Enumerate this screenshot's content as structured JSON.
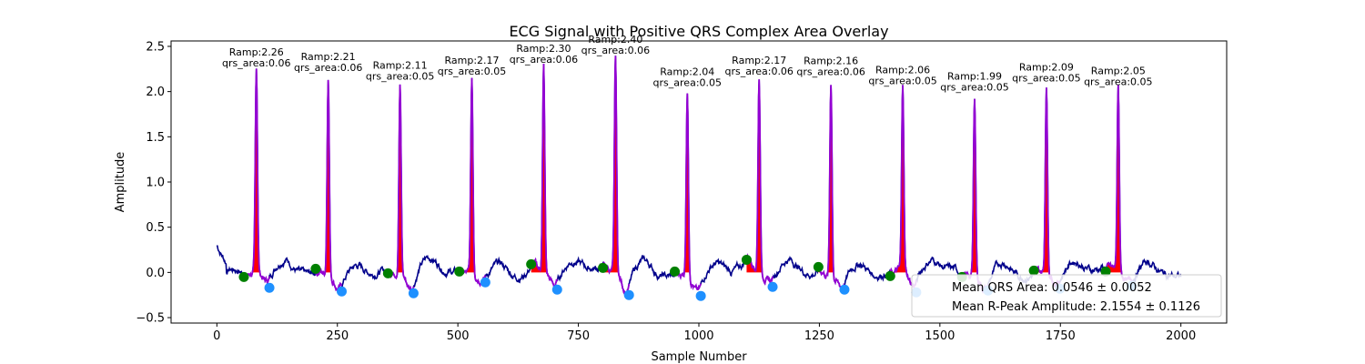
{
  "chart_data": {
    "type": "line",
    "title": "ECG Signal with Positive QRS Complex Area Overlay",
    "xlabel": "Sample Number",
    "ylabel": "Amplitude",
    "xlim": [
      -95,
      2095
    ],
    "ylim": [
      -0.56,
      2.56
    ],
    "xticks": [
      0,
      250,
      500,
      750,
      1000,
      1250,
      1500,
      1750,
      2000
    ],
    "yticks": [
      -0.5,
      0.0,
      0.5,
      1.0,
      1.5,
      2.0,
      2.5
    ],
    "ytick_labels": [
      "−0.5",
      "0.0",
      "0.5",
      "1.0",
      "1.5",
      "2.0",
      "2.5"
    ],
    "grid": false,
    "legend_position": "lower-right",
    "colors": {
      "signal": "#00008b",
      "qrs_segment": "#9400d3",
      "qrs_fill": "#ff0000",
      "q_marker": "#008000",
      "s_marker": "#1e90ff"
    },
    "beats": [
      {
        "r_x": 82,
        "r_amp": 2.26,
        "ramp_label": "Ramp:2.26",
        "area_label": "qrs_area:0.06",
        "q_x": 56,
        "q_y": -0.05,
        "s_x": 109,
        "s_y": -0.17
      },
      {
        "r_x": 231,
        "r_amp": 2.21,
        "ramp_label": "Ramp:2.21",
        "area_label": "qrs_area:0.06",
        "q_x": 205,
        "q_y": 0.04,
        "s_x": 259,
        "s_y": -0.21
      },
      {
        "r_x": 380,
        "r_amp": 2.11,
        "ramp_label": "Ramp:2.11",
        "area_label": "qrs_area:0.05",
        "q_x": 355,
        "q_y": -0.01,
        "s_x": 408,
        "s_y": -0.23
      },
      {
        "r_x": 529,
        "r_amp": 2.17,
        "ramp_label": "Ramp:2.17",
        "area_label": "qrs_area:0.05",
        "q_x": 503,
        "q_y": 0.01,
        "s_x": 557,
        "s_y": -0.11
      },
      {
        "r_x": 678,
        "r_amp": 2.3,
        "ramp_label": "Ramp:2.30",
        "area_label": "qrs_area:0.06",
        "q_x": 652,
        "q_y": 0.09,
        "s_x": 706,
        "s_y": -0.19
      },
      {
        "r_x": 827,
        "r_amp": 2.4,
        "ramp_label": "Ramp:2.40",
        "area_label": "qrs_area:0.06",
        "q_x": 801,
        "q_y": 0.05,
        "s_x": 855,
        "s_y": -0.25
      },
      {
        "r_x": 976,
        "r_amp": 2.04,
        "ramp_label": "Ramp:2.04",
        "area_label": "qrs_area:0.05",
        "q_x": 950,
        "q_y": 0.01,
        "s_x": 1004,
        "s_y": -0.26
      },
      {
        "r_x": 1125,
        "r_amp": 2.17,
        "ramp_label": "Ramp:2.17",
        "area_label": "qrs_area:0.06",
        "q_x": 1099,
        "q_y": 0.14,
        "s_x": 1153,
        "s_y": -0.16
      },
      {
        "r_x": 1274,
        "r_amp": 2.16,
        "ramp_label": "Ramp:2.16",
        "area_label": "qrs_area:0.06",
        "q_x": 1248,
        "q_y": 0.06,
        "s_x": 1302,
        "s_y": -0.19
      },
      {
        "r_x": 1423,
        "r_amp": 2.06,
        "ramp_label": "Ramp:2.06",
        "area_label": "qrs_area:0.05",
        "q_x": 1397,
        "q_y": -0.04,
        "s_x": 1451,
        "s_y": -0.22
      },
      {
        "r_x": 1572,
        "r_amp": 1.99,
        "ramp_label": "Ramp:1.99",
        "area_label": "qrs_area:0.05",
        "q_x": 1546,
        "q_y": -0.05,
        "s_x": 1600,
        "s_y": -0.2
      },
      {
        "r_x": 1721,
        "r_amp": 2.09,
        "ramp_label": "Ramp:2.09",
        "area_label": "qrs_area:0.05",
        "q_x": 1695,
        "q_y": 0.02,
        "s_x": 1749,
        "s_y": -0.18
      },
      {
        "r_x": 1870,
        "r_amp": 2.05,
        "ramp_label": "Ramp:2.05",
        "area_label": "qrs_area:0.05",
        "q_x": 1844,
        "q_y": 0.01,
        "s_x": 1898,
        "s_y": -0.15
      }
    ],
    "legend": [
      "Mean QRS Area: 0.0546 ± 0.0052",
      "Mean R-Peak Amplitude: 2.1554 ± 0.1126"
    ]
  }
}
